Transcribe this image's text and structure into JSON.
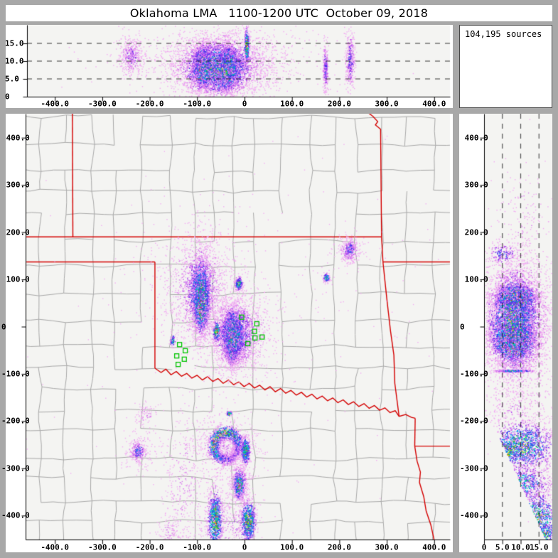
{
  "header": {
    "title": "Oklahoma LMA   1100-1200 UTC  October 09, 2018"
  },
  "sources_box": {
    "text": "104,195 sources"
  },
  "colors": {
    "frame": "#A8A8A8",
    "panel_bg": "#FFFFFF",
    "plot_bg": "#F4F4F2",
    "county": "#A8A8A8",
    "state": "#D40000",
    "station": "#00C400",
    "axis": "#000000",
    "density_ramp": [
      [
        0.045,
        "#F2AEF2"
      ],
      [
        0.09,
        "#D87CEE"
      ],
      [
        0.135,
        "#A83CF2"
      ],
      [
        0.185,
        "#6C2CEB"
      ],
      [
        0.24,
        "#3030EA"
      ],
      [
        0.3,
        "#1E68F2"
      ],
      [
        0.36,
        "#00A6F0"
      ],
      [
        0.42,
        "#00CFD8"
      ],
      [
        0.48,
        "#00DC96"
      ],
      [
        0.555,
        "#00C82A"
      ],
      [
        0.625,
        "#6ED800"
      ],
      [
        0.695,
        "#E6E400"
      ],
      [
        0.765,
        "#FFA000"
      ],
      [
        0.835,
        "#FF4F00"
      ],
      [
        0.905,
        "#E60000"
      ],
      [
        0.955,
        "#8C0000"
      ]
    ],
    "density_max": [
      "#F2F2F2",
      "#BDBDBD",
      "#190404"
    ]
  },
  "axes": {
    "ew": {
      "tick_values": [
        -400,
        -300,
        -200,
        -100,
        0,
        100,
        200,
        300,
        400
      ],
      "tick_labels": [
        "-400.0",
        "-300.0",
        "-200.0",
        "-100.0",
        "0",
        "100.0",
        "200.0",
        "300.0",
        "400.0"
      ]
    },
    "ns": {
      "tick_values": [
        400,
        300,
        200,
        100,
        0,
        -100,
        -200,
        -300,
        -400
      ],
      "tick_labels": [
        " 400.0",
        " 300.0",
        " 200.0",
        " 100.0",
        "0",
        "-100.0",
        "-200.0",
        "-300.0",
        "-400.0"
      ]
    },
    "alt_ew": {
      "tick_values": [
        15,
        10,
        5,
        0
      ],
      "tick_labels": [
        "15.0",
        "10.0",
        "5.0",
        "0"
      ],
      "dashed_values": [
        5,
        10,
        15
      ]
    },
    "alt_ns": {
      "tick_values": [
        0,
        5,
        10,
        15
      ],
      "tick_labels": [
        "0",
        "5.0",
        "10.0",
        "15.0"
      ],
      "dashed_values": [
        5,
        10,
        15
      ]
    }
  },
  "stations": [
    [
      -6,
      20
    ],
    [
      26,
      6
    ],
    [
      21,
      -10
    ],
    [
      37,
      -22
    ],
    [
      22,
      -24
    ],
    [
      7,
      -36
    ],
    [
      -137,
      -38
    ],
    [
      -125,
      -51
    ],
    [
      -143,
      -62
    ],
    [
      -127,
      -69
    ],
    [
      -140,
      -80
    ]
  ],
  "state_borders": [
    {
      "name": "co-ks",
      "pts": [
        [
          -363,
          452
        ],
        [
          -362,
          190
        ]
      ]
    },
    {
      "name": "lat-37n",
      "pts": [
        [
          -460,
          190
        ],
        [
          289,
          190
        ]
      ]
    },
    {
      "name": "ks-mo",
      "pts": [
        [
          262,
          452
        ],
        [
          271,
          445
        ],
        [
          281,
          434
        ],
        [
          276,
          427
        ],
        [
          287,
          418
        ],
        [
          289,
          190
        ]
      ]
    },
    {
      "name": "ok-mo",
      "pts": [
        [
          289,
          190
        ],
        [
          292,
          137
        ]
      ]
    },
    {
      "name": "mo-ar",
      "pts": [
        [
          292,
          137
        ],
        [
          460,
          137
        ]
      ]
    },
    {
      "name": "ok-ar",
      "pts": [
        [
          292,
          137
        ],
        [
          300,
          60
        ],
        [
          308,
          -10
        ],
        [
          315,
          -60
        ],
        [
          317,
          -120
        ],
        [
          326,
          -190
        ]
      ]
    },
    {
      "name": "panhandle-south",
      "pts": [
        [
          -460,
          137
        ],
        [
          -189,
          137
        ]
      ]
    },
    {
      "name": "tx-ok-100w",
      "pts": [
        [
          -189,
          137
        ],
        [
          -189,
          -88
        ]
      ]
    },
    {
      "name": "red-river",
      "pts": [
        [
          -189,
          -88
        ],
        [
          -176,
          -97
        ],
        [
          -166,
          -90
        ],
        [
          -155,
          -102
        ],
        [
          -144,
          -95
        ],
        [
          -133,
          -105
        ],
        [
          -122,
          -99
        ],
        [
          -111,
          -109
        ],
        [
          -100,
          -103
        ],
        [
          -89,
          -113
        ],
        [
          -78,
          -106
        ],
        [
          -67,
          -116
        ],
        [
          -56,
          -110
        ],
        [
          -45,
          -120
        ],
        [
          -34,
          -113
        ],
        [
          -23,
          -123
        ],
        [
          -12,
          -117
        ],
        [
          -1,
          -127
        ],
        [
          10,
          -120
        ],
        [
          21,
          -130
        ],
        [
          32,
          -124
        ],
        [
          43,
          -134
        ],
        [
          54,
          -127
        ],
        [
          65,
          -138
        ],
        [
          76,
          -131
        ],
        [
          87,
          -141
        ],
        [
          98,
          -135
        ],
        [
          109,
          -145
        ],
        [
          120,
          -139
        ],
        [
          131,
          -149
        ],
        [
          142,
          -143
        ],
        [
          153,
          -153
        ],
        [
          164,
          -147
        ],
        [
          175,
          -157
        ],
        [
          186,
          -151
        ],
        [
          197,
          -161
        ],
        [
          208,
          -155
        ],
        [
          219,
          -165
        ],
        [
          230,
          -159
        ],
        [
          241,
          -169
        ],
        [
          252,
          -163
        ],
        [
          263,
          -173
        ],
        [
          274,
          -167
        ],
        [
          285,
          -177
        ],
        [
          296,
          -172
        ],
        [
          307,
          -182
        ],
        [
          318,
          -178
        ],
        [
          326,
          -190
        ]
      ]
    },
    {
      "name": "river-east",
      "pts": [
        [
          326,
          -190
        ],
        [
          340,
          -186
        ],
        [
          352,
          -192
        ],
        [
          360,
          -194
        ]
      ]
    },
    {
      "name": "tx-ar",
      "pts": [
        [
          360,
          -194
        ],
        [
          359,
          -253
        ]
      ]
    },
    {
      "name": "ar-la",
      "pts": [
        [
          359,
          -253
        ],
        [
          460,
          -253
        ]
      ]
    },
    {
      "name": "tx-la",
      "pts": [
        [
          359,
          -253
        ],
        [
          364,
          -285
        ],
        [
          371,
          -308
        ],
        [
          369,
          -330
        ],
        [
          378,
          -360
        ],
        [
          383,
          -390
        ],
        [
          393,
          -420
        ],
        [
          400,
          -452
        ]
      ]
    }
  ],
  "chart_data": {
    "type": "scatter",
    "description": "VHF lightning source density, 3-panel LMA display (plan view, E-W x altitude, altitude x N-S), km from network center",
    "total_sources": 104195,
    "panels": {
      "plan_view": {
        "x_range": [
          -460,
          435
        ],
        "y_range": [
          -450,
          450
        ],
        "clusters": [
          {
            "t": "g",
            "x": -92,
            "y": 58,
            "sx": 8,
            "sy": 34,
            "n": 2300,
            "i": 0.87
          },
          {
            "t": "g",
            "x": -94,
            "y": 75,
            "sx": 16,
            "sy": 46,
            "n": 900,
            "i": 0.35
          },
          {
            "t": "g",
            "x": -98,
            "y": 80,
            "sx": 34,
            "sy": 58,
            "n": 650,
            "i": 0.12
          },
          {
            "t": "g",
            "x": -100,
            "y": 90,
            "sx": 55,
            "sy": 70,
            "n": 350,
            "i": 0.06
          },
          {
            "t": "g",
            "x": -28,
            "y": -26,
            "sx": 5.5,
            "sy": 25,
            "n": 1700,
            "i": 0.97
          },
          {
            "t": "g",
            "x": -25,
            "y": -16,
            "sx": 14,
            "sy": 30,
            "n": 1500,
            "i": 0.52
          },
          {
            "t": "g",
            "x": -20,
            "y": -14,
            "sx": 27,
            "sy": 37,
            "n": 1100,
            "i": 0.24
          },
          {
            "t": "g",
            "x": -16,
            "y": -10,
            "sx": 44,
            "sy": 50,
            "n": 600,
            "i": 0.09
          },
          {
            "t": "g",
            "x": -60,
            "y": -10,
            "sx": 4,
            "sy": 11,
            "n": 160,
            "i": 0.7
          },
          {
            "t": "g",
            "x": -13,
            "y": 92,
            "sx": 4,
            "sy": 7,
            "n": 170,
            "i": 0.55
          },
          {
            "t": "g",
            "x": 172,
            "y": 104,
            "sx": 3.5,
            "sy": 5,
            "n": 90,
            "i": 0.5
          },
          {
            "t": "g",
            "x": 221,
            "y": 163,
            "sx": 8,
            "sy": 12,
            "n": 260,
            "i": 0.24
          },
          {
            "t": "g",
            "x": 221,
            "y": 163,
            "sx": 16,
            "sy": 20,
            "n": 120,
            "i": 0.07
          },
          {
            "t": "g",
            "x": -152,
            "y": -28,
            "sx": 3,
            "sy": 6,
            "n": 60,
            "i": 0.55
          },
          {
            "t": "ring",
            "x": -40,
            "y": -252,
            "r": 26,
            "sr": 6.5,
            "n": 1500,
            "i": 0.52
          },
          {
            "t": "g",
            "x": -40,
            "y": -250,
            "sx": 34,
            "sy": 36,
            "n": 420,
            "i": 0.08
          },
          {
            "t": "g",
            "x": 1,
            "y": -262,
            "sx": 5,
            "sy": 14,
            "n": 380,
            "i": 0.58
          },
          {
            "t": "g",
            "x": -12,
            "y": -333,
            "sx": 6.5,
            "sy": 16,
            "n": 520,
            "i": 0.6
          },
          {
            "t": "g",
            "x": -12,
            "y": -333,
            "sx": 14,
            "sy": 28,
            "n": 200,
            "i": 0.1
          },
          {
            "t": "g",
            "x": -63,
            "y": -408,
            "sx": 8,
            "sy": 30,
            "n": 750,
            "i": 0.62
          },
          {
            "t": "g",
            "x": 7,
            "y": -412,
            "sx": 8,
            "sy": 22,
            "n": 680,
            "i": 0.65
          },
          {
            "t": "g",
            "x": -30,
            "y": -420,
            "sx": 30,
            "sy": 35,
            "n": 250,
            "i": 0.07
          },
          {
            "t": "g",
            "x": -33,
            "y": -183,
            "sx": 3,
            "sy": 3,
            "n": 50,
            "i": 0.6
          },
          {
            "t": "g",
            "x": -225,
            "y": -263,
            "sx": 7,
            "sy": 10,
            "n": 200,
            "i": 0.28
          },
          {
            "t": "g",
            "x": -225,
            "y": -263,
            "sx": 18,
            "sy": 22,
            "n": 130,
            "i": 0.07
          },
          {
            "t": "g",
            "x": -128,
            "y": -330,
            "sx": 25,
            "sy": 85,
            "n": 330,
            "i": 0.055
          },
          {
            "t": "g",
            "x": -210,
            "y": -185,
            "sx": 12,
            "sy": 15,
            "n": 70,
            "i": 0.06
          },
          {
            "t": "g",
            "x": -160,
            "y": -433,
            "sx": 12,
            "sy": 16,
            "n": 90,
            "i": 0.07
          },
          {
            "t": "g",
            "x": -20,
            "y": 120,
            "sx": 200,
            "sy": 120,
            "n": 120,
            "i": 0.03
          },
          {
            "t": "g",
            "x": 50,
            "y": -60,
            "sx": 250,
            "sy": 200,
            "n": 100,
            "i": 0.025
          }
        ]
      },
      "ew_altitude": {
        "x_range": [
          -460,
          435
        ],
        "alt_range": [
          0,
          20
        ],
        "clusters": [
          {
            "t": "g",
            "x": -90,
            "y": 8.5,
            "sx": 9,
            "sy": 2.7,
            "n": 1500,
            "i": 0.92
          },
          {
            "t": "g",
            "x": -36,
            "y": 8,
            "sx": 9.5,
            "sy": 2.9,
            "n": 1700,
            "i": 0.99
          },
          {
            "t": "g",
            "x": -58,
            "y": 8,
            "sx": 36,
            "sy": 3.7,
            "n": 2400,
            "i": 0.5
          },
          {
            "t": "g",
            "x": -52,
            "y": 9,
            "sx": 52,
            "sy": 4.4,
            "n": 1400,
            "i": 0.22
          },
          {
            "t": "g",
            "x": -50,
            "y": 9.5,
            "sx": 68,
            "sy": 5.2,
            "n": 700,
            "i": 0.08
          },
          {
            "t": "g",
            "x": 4,
            "y": 14.5,
            "sx": 2.5,
            "sy": 2.3,
            "n": 240,
            "i": 0.75
          },
          {
            "t": "g",
            "x": -240,
            "y": 11.5,
            "sx": 11,
            "sy": 2.4,
            "n": 240,
            "i": 0.15
          },
          {
            "t": "g",
            "x": -240,
            "y": 11.5,
            "sx": 20,
            "sy": 3.4,
            "n": 120,
            "i": 0.06
          },
          {
            "t": "g",
            "x": 170,
            "y": 8,
            "sx": 3,
            "sy": 3.4,
            "n": 210,
            "i": 0.18
          },
          {
            "t": "g",
            "x": 222,
            "y": 10.5,
            "sx": 5,
            "sy": 4,
            "n": 290,
            "i": 0.18
          },
          {
            "t": "g",
            "x": -60,
            "y": 10,
            "sx": 110,
            "sy": 5,
            "n": 200,
            "i": 0.04
          }
        ]
      },
      "ns_altitude": {
        "alt_range": [
          0,
          18.6
        ],
        "y_range": [
          -450,
          450
        ],
        "clusters": [
          {
            "t": "g",
            "x": 8.5,
            "y": 62,
            "sx": 2.7,
            "sy": 14,
            "n": 1300,
            "i": 0.9
          },
          {
            "t": "g",
            "x": 8,
            "y": -28,
            "sx": 2.9,
            "sy": 22,
            "n": 1800,
            "i": 0.99
          },
          {
            "t": "g",
            "x": 8,
            "y": 12,
            "sx": 3.6,
            "sy": 52,
            "n": 2600,
            "i": 0.5
          },
          {
            "t": "g",
            "x": 9,
            "y": 12,
            "sx": 4.4,
            "sy": 66,
            "n": 1500,
            "i": 0.22
          },
          {
            "t": "g",
            "x": 9.5,
            "y": 15,
            "sx": 5.2,
            "sy": 80,
            "n": 650,
            "i": 0.08
          },
          {
            "t": "g",
            "x": 8,
            "y": -93,
            "sx": 2.6,
            "sy": 1.4,
            "n": 260,
            "i": 0.42
          },
          {
            "t": "g",
            "x": 5,
            "y": 155,
            "sx": 2.2,
            "sy": 12,
            "n": 150,
            "i": 0.22
          },
          {
            "t": "g",
            "x": 10,
            "y": 240,
            "sx": 4,
            "sy": 55,
            "n": 80,
            "i": 0.06
          },
          {
            "t": "g",
            "x": 10,
            "y": -60,
            "sx": 7,
            "sy": 200,
            "n": 120,
            "i": 0.03
          },
          {
            "t": "g",
            "x": 10,
            "y": -252,
            "sx": 4.5,
            "sy": 26,
            "n": 1050,
            "i": 0.5,
            "clip": 1
          },
          {
            "t": "g",
            "x": 6.5,
            "y": -262,
            "sx": 2,
            "sy": 14,
            "n": 220,
            "i": 0.62,
            "clip": 1
          },
          {
            "t": "g",
            "x": 11,
            "y": -330,
            "sx": 3.5,
            "sy": 17,
            "n": 400,
            "i": 0.4,
            "clip": 1
          },
          {
            "t": "g",
            "x": 13.5,
            "y": -405,
            "sx": 4,
            "sy": 28,
            "n": 850,
            "i": 0.55,
            "clip": 1
          },
          {
            "t": "g",
            "x": 15.5,
            "y": -437,
            "sx": 2,
            "sy": 11,
            "n": 260,
            "i": 0.68,
            "clip": 1
          },
          {
            "t": "g",
            "x": 12,
            "y": -320,
            "sx": 5.5,
            "sy": 85,
            "n": 650,
            "i": 0.09,
            "clip": 1
          },
          {
            "t": "g",
            "x": 8,
            "y": -175,
            "sx": 4,
            "sy": 20,
            "n": 120,
            "i": 0.07,
            "clip": 1
          }
        ],
        "range_cutoff": {
          "y_start": -203,
          "alt_at_start": 2.3,
          "slope_km_per_km": 0.0585
        }
      }
    }
  }
}
